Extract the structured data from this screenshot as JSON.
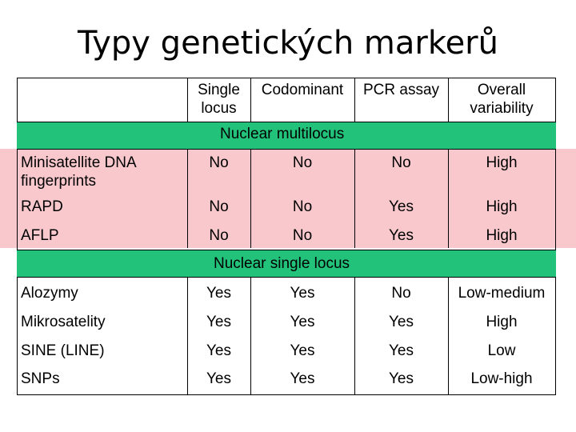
{
  "title": "Typy genetických markerů",
  "columns": [
    "Single locus",
    "Codominant",
    "PCR assay",
    "Overall variability"
  ],
  "column_lines": [
    [
      "Single",
      "locus"
    ],
    [
      "Codominant"
    ],
    [
      "PCR assay"
    ],
    [
      "Overall",
      "variability"
    ]
  ],
  "sections": [
    {
      "label": "Nuclear multilocus",
      "rows": [
        {
          "marker": [
            "Minisatellite DNA",
            "fingerprints"
          ],
          "values": [
            "No",
            "No",
            "No",
            "High"
          ]
        },
        {
          "marker": [
            "RAPD"
          ],
          "values": [
            "No",
            "No",
            "Yes",
            "High"
          ]
        },
        {
          "marker": [
            "AFLP"
          ],
          "values": [
            "No",
            "No",
            "Yes",
            "High"
          ]
        }
      ]
    },
    {
      "label": "Nuclear single locus",
      "rows": [
        {
          "marker": [
            "Alozymy"
          ],
          "values": [
            "Yes",
            "Yes",
            "No",
            "Low-medium"
          ]
        },
        {
          "marker": [
            "Mikrosatelity"
          ],
          "values": [
            "Yes",
            "Yes",
            "Yes",
            "High"
          ]
        },
        {
          "marker": [
            "SINE (LINE)"
          ],
          "values": [
            "Yes",
            "Yes",
            "Yes",
            "Low"
          ]
        },
        {
          "marker": [
            "SNPs"
          ],
          "values": [
            "Yes",
            "Yes",
            "Yes",
            "Low-high"
          ]
        }
      ]
    }
  ],
  "colors": {
    "section_band": "#22c27a",
    "highlight_rows": "#f8c8cc",
    "grid": "#000000"
  }
}
